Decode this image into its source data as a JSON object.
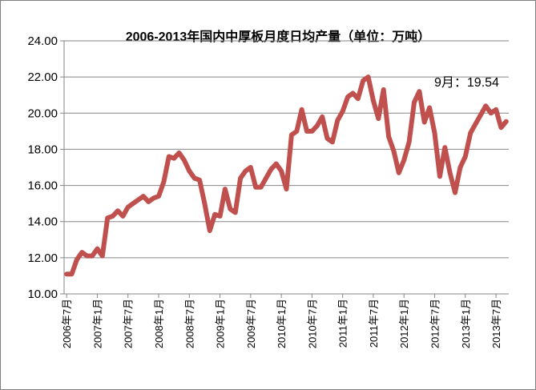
{
  "chart_data": {
    "type": "line",
    "title": "2006-2013年国内中厚板月度日均产量（单位：万吨）",
    "xlabel": "",
    "ylabel": "",
    "ylim": [
      10,
      24
    ],
    "yticks": [
      "10.00",
      "12.00",
      "14.00",
      "16.00",
      "18.00",
      "20.00",
      "22.00",
      "24.00"
    ],
    "xtick_labels": [
      "2006年7月",
      "2007年1月",
      "2007年7月",
      "2008年1月",
      "2008年7月",
      "2009年1月",
      "2009年7月",
      "2010年1月",
      "2010年7月",
      "2011年1月",
      "2011年7月",
      "2012年1月",
      "2012年7月",
      "2013年1月",
      "2013年7月"
    ],
    "grid": "horizontal",
    "legend": "none",
    "series_color": "#c0504d",
    "annotation": "9月：19.54",
    "series": [
      {
        "values": [
          11.1,
          11.1,
          11.9,
          12.3,
          12.1,
          12.1,
          12.5,
          12.1,
          14.2,
          14.3,
          14.6,
          14.3,
          14.8,
          15.0,
          15.2,
          15.4,
          15.1,
          15.3,
          15.4,
          16.2,
          17.6,
          17.5,
          17.8,
          17.4,
          16.8,
          16.4,
          16.3,
          15.0,
          13.5,
          14.4,
          14.3,
          15.8,
          14.7,
          14.5,
          16.4,
          16.8,
          17.0,
          15.9,
          15.9,
          16.4,
          16.9,
          17.2,
          16.8,
          15.8,
          18.8,
          19.0,
          20.2,
          19.0,
          19.0,
          19.3,
          19.8,
          18.6,
          18.4,
          19.6,
          20.1,
          20.9,
          21.1,
          20.8,
          21.8,
          22.0,
          20.7,
          19.7,
          21.3,
          18.7,
          17.9,
          16.7,
          17.4,
          18.4,
          20.6,
          21.2,
          19.5,
          20.3,
          18.9,
          16.5,
          18.1,
          16.7,
          15.6,
          17.0,
          17.6,
          18.9,
          19.4,
          19.9,
          20.4,
          20.0,
          20.2,
          19.2,
          19.54
        ]
      }
    ]
  }
}
